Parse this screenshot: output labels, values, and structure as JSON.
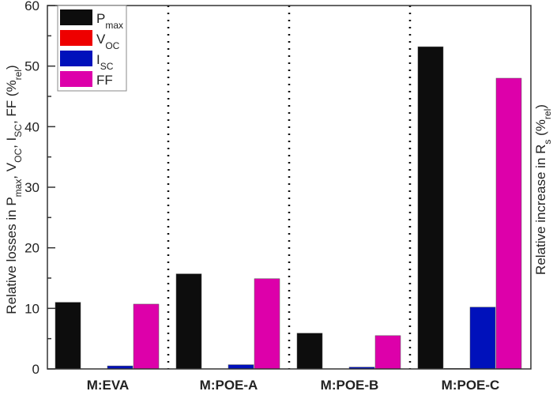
{
  "chart_data": {
    "type": "bar",
    "categories": [
      "M:EVA",
      "M:POE-A",
      "M:POE-B",
      "M:POE-C"
    ],
    "series": [
      {
        "name": "P_max",
        "label_main": "P",
        "label_sub": "max",
        "color": "#0d0d0d",
        "values": [
          11.0,
          15.7,
          5.9,
          53.2
        ]
      },
      {
        "name": "V_OC",
        "label_main": "V",
        "label_sub": "OC",
        "color": "#ee0000",
        "values": [
          0.0,
          0.0,
          0.0,
          0.1
        ]
      },
      {
        "name": "I_SC",
        "label_main": "I",
        "label_sub": "SC",
        "color": "#0011bb",
        "values": [
          0.5,
          0.7,
          0.3,
          10.2
        ]
      },
      {
        "name": "FF",
        "label_main": "FF",
        "label_sub": "",
        "color": "#dd00aa",
        "values": [
          10.7,
          14.9,
          5.5,
          48.0
        ]
      }
    ],
    "ylim": [
      0,
      60
    ],
    "yticks": [
      "0",
      "10",
      "20",
      "30",
      "40",
      "50",
      "60"
    ],
    "ylabel": "Relative losses in P_max, V_OC, I_SC, FF (%_rel)",
    "y2label": "Relative increase in R_s (%_rel)",
    "legend_placement": "top-left",
    "grid": false,
    "group_separators": "dotted"
  }
}
